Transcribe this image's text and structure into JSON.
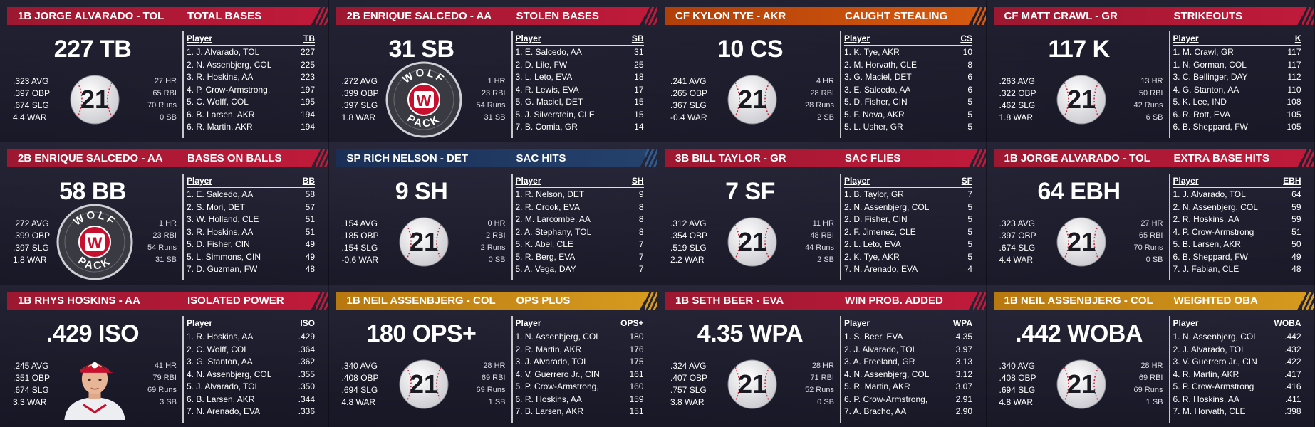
{
  "cards": [
    {
      "player": "1B JORGE ALVARADO - TOL",
      "category": "TOTAL BASES",
      "big": "227 TB",
      "stats": [
        ".323 AVG",
        ".397 OBP",
        ".674 SLG",
        "4.4 WAR"
      ],
      "counts": [
        "27 HR",
        "65 RBI",
        "70 Runs",
        "0 SB"
      ],
      "emblem": "ball-21",
      "color": "red",
      "col_player": "Player",
      "col_stat": "TB",
      "rows": [
        {
          "name": "1. J. Alvarado, TOL",
          "val": "227"
        },
        {
          "name": "2. N. Assenbjerg, COL",
          "val": "225"
        },
        {
          "name": "3. R. Hoskins, AA",
          "val": "223"
        },
        {
          "name": "4. P. Crow-Armstrong,",
          "val": "197"
        },
        {
          "name": "5. C. Wolff, COL",
          "val": "195"
        },
        {
          "name": "6. B. Larsen, AKR",
          "val": "194"
        },
        {
          "name": "6. R. Martin, AKR",
          "val": "194"
        }
      ]
    },
    {
      "player": "2B ENRIQUE SALCEDO - AA",
      "category": "STOLEN BASES",
      "big": "31 SB",
      "stats": [
        ".272 AVG",
        ".399 OBP",
        ".397 SLG",
        "1.8 WAR"
      ],
      "counts": [
        "1 HR",
        "23 RBI",
        "54 Runs",
        "31 SB"
      ],
      "emblem": "wolf-pack",
      "color": "red",
      "col_player": "Player",
      "col_stat": "SB",
      "rows": [
        {
          "name": "1. E. Salcedo, AA",
          "val": "31"
        },
        {
          "name": "2. D. Lile, FW",
          "val": "25"
        },
        {
          "name": "3. L. Leto, EVA",
          "val": "18"
        },
        {
          "name": "4. R. Lewis, EVA",
          "val": "17"
        },
        {
          "name": "5. G. Maciel, DET",
          "val": "15"
        },
        {
          "name": "5. J. Silverstein, CLE",
          "val": "15"
        },
        {
          "name": "7. B. Comia, GR",
          "val": "14"
        }
      ]
    },
    {
      "player": "CF KYLON TYE - AKR",
      "category": "CAUGHT STEALING",
      "big": "10 CS",
      "stats": [
        ".241 AVG",
        ".265 OBP",
        ".367 SLG",
        "-0.4 WAR"
      ],
      "counts": [
        "4 HR",
        "28 RBI",
        "28 Runs",
        "2 SB"
      ],
      "emblem": "ball-21",
      "color": "orange",
      "col_player": "Player",
      "col_stat": "CS",
      "rows": [
        {
          "name": "1. K. Tye, AKR",
          "val": "10"
        },
        {
          "name": "2. M. Horvath, CLE",
          "val": "8"
        },
        {
          "name": "3. G. Maciel, DET",
          "val": "6"
        },
        {
          "name": "3. E. Salcedo, AA",
          "val": "6"
        },
        {
          "name": "5. D. Fisher, CIN",
          "val": "5"
        },
        {
          "name": "5. F. Nova, AKR",
          "val": "5"
        },
        {
          "name": "5. L. Usher, GR",
          "val": "5"
        }
      ]
    },
    {
      "player": "CF MATT CRAWL - GR",
      "category": "STRIKEOUTS",
      "big": "117 K",
      "stats": [
        ".263 AVG",
        ".322 OBP",
        ".462 SLG",
        "1.8 WAR"
      ],
      "counts": [
        "13 HR",
        "50 RBI",
        "42 Runs",
        "6 SB"
      ],
      "emblem": "ball-21",
      "color": "red",
      "col_player": "Player",
      "col_stat": "K",
      "rows": [
        {
          "name": "1. M. Crawl, GR",
          "val": "117"
        },
        {
          "name": "1. N. Gorman, COL",
          "val": "117"
        },
        {
          "name": "3. C. Bellinger, DAY",
          "val": "112"
        },
        {
          "name": "4. G. Stanton, AA",
          "val": "110"
        },
        {
          "name": "5. K. Lee, IND",
          "val": "108"
        },
        {
          "name": "6. R. Rott, EVA",
          "val": "105"
        },
        {
          "name": "6. B. Sheppard, FW",
          "val": "105"
        }
      ]
    },
    {
      "player": "2B ENRIQUE SALCEDO - AA",
      "category": "BASES ON BALLS",
      "big": "58 BB",
      "stats": [
        ".272 AVG",
        ".399 OBP",
        ".397 SLG",
        "1.8 WAR"
      ],
      "counts": [
        "1 HR",
        "23 RBI",
        "54 Runs",
        "31 SB"
      ],
      "emblem": "wolf-pack",
      "color": "red",
      "col_player": "Player",
      "col_stat": "BB",
      "rows": [
        {
          "name": "1. E. Salcedo, AA",
          "val": "58"
        },
        {
          "name": "2. S. Mori, DET",
          "val": "57"
        },
        {
          "name": "3. W. Holland, CLE",
          "val": "51"
        },
        {
          "name": "3. R. Hoskins, AA",
          "val": "51"
        },
        {
          "name": "5. D. Fisher, CIN",
          "val": "49"
        },
        {
          "name": "5. L. Simmons, CIN",
          "val": "49"
        },
        {
          "name": "7. D. Guzman, FW",
          "val": "48"
        }
      ]
    },
    {
      "player": "SP RICH NELSON - DET",
      "category": "SAC HITS",
      "big": "9 SH",
      "stats": [
        ".154 AVG",
        ".185 OBP",
        ".154 SLG",
        "-0.6 WAR"
      ],
      "counts": [
        "0 HR",
        "2 RBI",
        "2 Runs",
        "0 SB"
      ],
      "emblem": "ball-21",
      "color": "navy",
      "col_player": "Player",
      "col_stat": "SH",
      "rows": [
        {
          "name": "1. R. Nelson, DET",
          "val": "9"
        },
        {
          "name": "2. R. Crook, EVA",
          "val": "8"
        },
        {
          "name": "2. M. Larcombe, AA",
          "val": "8"
        },
        {
          "name": "2. A. Stephany, TOL",
          "val": "8"
        },
        {
          "name": "5. K. Abel, CLE",
          "val": "7"
        },
        {
          "name": "5. R. Berg, EVA",
          "val": "7"
        },
        {
          "name": "5. A. Vega, DAY",
          "val": "7"
        }
      ]
    },
    {
      "player": "3B BILL TAYLOR - GR",
      "category": "SAC FLIES",
      "big": "7 SF",
      "stats": [
        ".312 AVG",
        ".354 OBP",
        ".519 SLG",
        "2.2 WAR"
      ],
      "counts": [
        "11 HR",
        "48 RBI",
        "44 Runs",
        "2 SB"
      ],
      "emblem": "ball-21",
      "color": "red",
      "col_player": "Player",
      "col_stat": "SF",
      "rows": [
        {
          "name": "1. B. Taylor, GR",
          "val": "7"
        },
        {
          "name": "2. N. Assenbjerg, COL",
          "val": "5"
        },
        {
          "name": "2. D. Fisher, CIN",
          "val": "5"
        },
        {
          "name": "2. F. Jimenez, CLE",
          "val": "5"
        },
        {
          "name": "2. L. Leto, EVA",
          "val": "5"
        },
        {
          "name": "2. K. Tye, AKR",
          "val": "5"
        },
        {
          "name": "7. N. Arenado, EVA",
          "val": "4"
        }
      ]
    },
    {
      "player": "1B JORGE ALVARADO - TOL",
      "category": "EXTRA BASE HITS",
      "big": "64 EBH",
      "stats": [
        ".323 AVG",
        ".397 OBP",
        ".674 SLG",
        "4.4 WAR"
      ],
      "counts": [
        "27 HR",
        "65 RBI",
        "70 Runs",
        "0 SB"
      ],
      "emblem": "ball-21",
      "color": "red",
      "col_player": "Player",
      "col_stat": "EBH",
      "rows": [
        {
          "name": "1. J. Alvarado, TOL",
          "val": "64"
        },
        {
          "name": "2. N. Assenbjerg, COL",
          "val": "59"
        },
        {
          "name": "2. R. Hoskins, AA",
          "val": "59"
        },
        {
          "name": "4. P. Crow-Armstrong",
          "val": "51"
        },
        {
          "name": "5. B. Larsen, AKR",
          "val": "50"
        },
        {
          "name": "6. B. Sheppard, FW",
          "val": "49"
        },
        {
          "name": "7. J. Fabian, CLE",
          "val": "48"
        }
      ]
    },
    {
      "player": "1B RHYS HOSKINS - AA",
      "category": "ISOLATED POWER",
      "big": ".429 ISO",
      "stats": [
        ".245 AVG",
        ".351 OBP",
        ".674 SLG",
        "3.3 WAR"
      ],
      "counts": [
        "41 HR",
        "79 RBI",
        "69 Runs",
        "3 SB"
      ],
      "emblem": "player-photo",
      "color": "red",
      "col_player": "Player",
      "col_stat": "ISO",
      "rows": [
        {
          "name": "1. R. Hoskins, AA",
          "val": ".429"
        },
        {
          "name": "2. C. Wolff, COL",
          "val": ".364"
        },
        {
          "name": "3. G. Stanton, AA",
          "val": ".362"
        },
        {
          "name": "4. N. Assenbjerg, COL",
          "val": ".355"
        },
        {
          "name": "5. J. Alvarado, TOL",
          "val": ".350"
        },
        {
          "name": "6. B. Larsen, AKR",
          "val": ".344"
        },
        {
          "name": "7. N. Arenado, EVA",
          "val": ".336"
        }
      ]
    },
    {
      "player": "1B NEIL ASSENBJERG - COL",
      "category": "OPS PLUS",
      "big": "180 OPS+",
      "stats": [
        ".340 AVG",
        ".408 OBP",
        ".694 SLG",
        "4.8 WAR"
      ],
      "counts": [
        "28 HR",
        "69 RBI",
        "69 Runs",
        "1 SB"
      ],
      "emblem": "ball-21",
      "color": "gold",
      "col_player": "Player",
      "col_stat": "OPS+",
      "rows": [
        {
          "name": "1. N. Assenbjerg, COL",
          "val": "180"
        },
        {
          "name": "2. R. Martin, AKR",
          "val": "176"
        },
        {
          "name": "3. J. Alvarado, TOL",
          "val": "175"
        },
        {
          "name": "4. V. Guerrero Jr., CIN",
          "val": "161"
        },
        {
          "name": "5. P. Crow-Armstrong,",
          "val": "160"
        },
        {
          "name": "6. R. Hoskins, AA",
          "val": "159"
        },
        {
          "name": "7. B. Larsen, AKR",
          "val": "151"
        }
      ]
    },
    {
      "player": "1B SETH BEER - EVA",
      "category": "WIN PROB. ADDED",
      "big": "4.35 WPA",
      "stats": [
        ".324 AVG",
        ".407 OBP",
        ".757 SLG",
        "3.8 WAR"
      ],
      "counts": [
        "28 HR",
        "71 RBI",
        "52 Runs",
        "0 SB"
      ],
      "emblem": "ball-21",
      "color": "red",
      "col_player": "Player",
      "col_stat": "WPA",
      "rows": [
        {
          "name": "1. S. Beer, EVA",
          "val": "4.35"
        },
        {
          "name": "2. J. Alvarado, TOL",
          "val": "3.97"
        },
        {
          "name": "3. A. Freeland, GR",
          "val": "3.13"
        },
        {
          "name": "4. N. Assenbjerg, COL",
          "val": "3.12"
        },
        {
          "name": "5. R. Martin, AKR",
          "val": "3.07"
        },
        {
          "name": "6. P. Crow-Armstrong,",
          "val": "2.91"
        },
        {
          "name": "7. A. Bracho, AA",
          "val": "2.90"
        }
      ]
    },
    {
      "player": "1B NEIL ASSENBJERG - COL",
      "category": "WEIGHTED OBA",
      "big": ".442 WOBA",
      "stats": [
        ".340 AVG",
        ".408 OBP",
        ".694 SLG",
        "4.8 WAR"
      ],
      "counts": [
        "28 HR",
        "69 RBI",
        "69 Runs",
        "1 SB"
      ],
      "emblem": "ball-21",
      "color": "gold",
      "col_player": "Player",
      "col_stat": "WOBA",
      "rows": [
        {
          "name": "1. N. Assenbjerg, COL",
          "val": ".442"
        },
        {
          "name": "2. J. Alvarado, TOL",
          "val": ".432"
        },
        {
          "name": "3. V. Guerrero Jr., CIN",
          "val": ".422"
        },
        {
          "name": "4. R. Martin, AKR",
          "val": ".417"
        },
        {
          "name": "5. P. Crow-Armstrong",
          "val": ".416"
        },
        {
          "name": "6. R. Hoskins, AA",
          "val": ".411"
        },
        {
          "name": "7. M. Horvath, CLE",
          "val": ".398"
        }
      ]
    }
  ],
  "ball_number": "21",
  "wolf_pack": {
    "top": "WOLF",
    "bottom": "PACK",
    "mark": "W"
  }
}
